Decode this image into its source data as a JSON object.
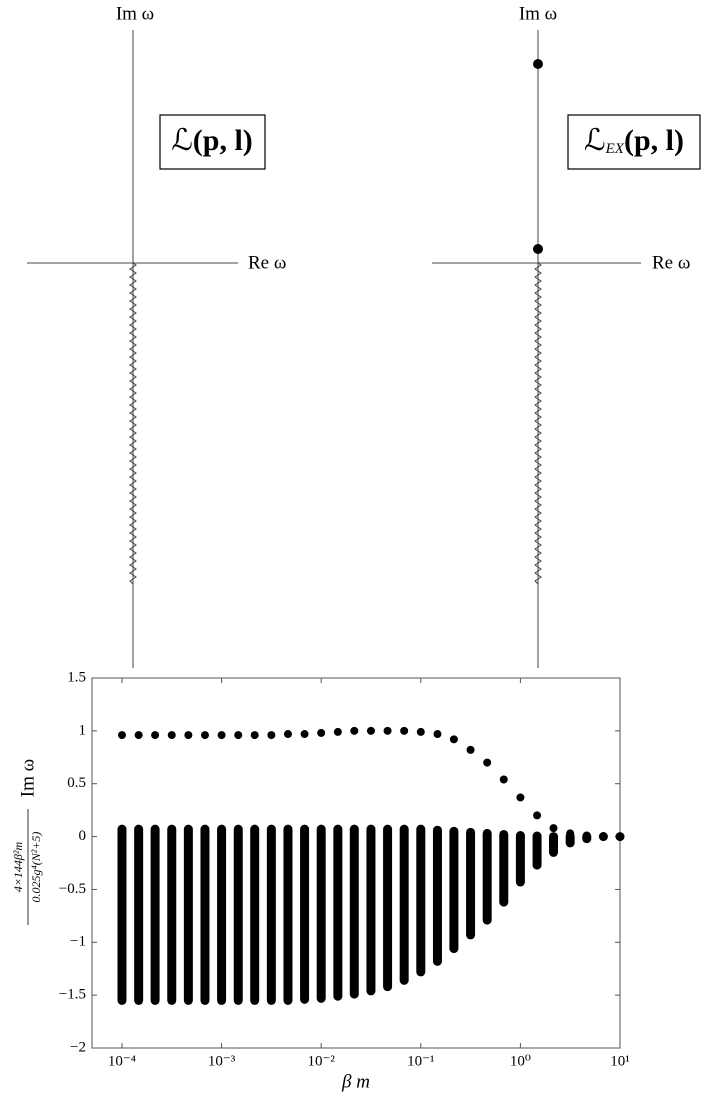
{
  "diagrams": [
    {
      "vertical_label": "Im ω",
      "horizontal_label": "Re ω",
      "box": {
        "symbol": "ℒ",
        "arguments": "(p, l)"
      }
    },
    {
      "vertical_label": "Im ω",
      "horizontal_label": "Re ω",
      "box": {
        "symbol": "ℒ",
        "subscript": "EX",
        "arguments": "(p, l)"
      }
    }
  ],
  "chart_data": {
    "type": "scatter",
    "xlabel": "β m",
    "ylabel": {
      "numerator": "4×144β²m",
      "denominator": "0.025g⁴(N²+5)",
      "text": "Im ω"
    },
    "xscale": "log",
    "xlim": [
      5e-05,
      10
    ],
    "xticks": [
      {
        "value": 0.0001,
        "label": "10⁻⁴"
      },
      {
        "value": 0.001,
        "label": "10⁻³"
      },
      {
        "value": 0.01,
        "label": "10⁻²"
      },
      {
        "value": 0.1,
        "label": "10⁻¹"
      },
      {
        "value": 1,
        "label": "10⁰"
      },
      {
        "value": 10,
        "label": "10¹"
      }
    ],
    "ylim": [
      -2,
      1.5
    ],
    "yticks": [
      {
        "value": -2,
        "label": "−2"
      },
      {
        "value": -1.5,
        "label": "−1.5"
      },
      {
        "value": -1,
        "label": "−1"
      },
      {
        "value": -0.5,
        "label": "−0.5"
      },
      0,
      0.5,
      1,
      1.5
    ],
    "x": [
      0.0001,
      0.000147,
      0.000215,
      0.000316,
      0.000464,
      0.000681,
      0.001,
      0.00147,
      0.00215,
      0.00316,
      0.00464,
      0.00681,
      0.01,
      0.0147,
      0.0215,
      0.0316,
      0.0464,
      0.0681,
      0.1,
      0.147,
      0.215,
      0.316,
      0.464,
      0.681,
      1,
      1.47,
      2.15,
      3.16,
      4.64,
      6.81,
      10
    ],
    "series": [
      {
        "color": "#000000",
        "values": [
          0.96,
          0.96,
          0.96,
          0.96,
          0.96,
          0.96,
          0.96,
          0.96,
          0.96,
          0.96,
          0.97,
          0.97,
          0.98,
          0.99,
          1.0,
          1.0,
          1.0,
          1.0,
          0.99,
          0.97,
          0.92,
          0.82,
          0.7,
          0.54,
          0.37,
          0.2,
          0.08,
          0.03,
          0.01,
          0.005,
          0.002
        ]
      }
    ],
    "band": {
      "color": "#000000",
      "high": [
        0.07,
        0.07,
        0.07,
        0.07,
        0.07,
        0.07,
        0.07,
        0.07,
        0.07,
        0.07,
        0.07,
        0.07,
        0.07,
        0.07,
        0.07,
        0.07,
        0.07,
        0.07,
        0.07,
        0.06,
        0.05,
        0.04,
        0.03,
        0.02,
        0.01,
        0.005,
        0.0,
        0.0,
        0.0,
        0.0,
        0.0
      ],
      "low": [
        -1.55,
        -1.55,
        -1.55,
        -1.55,
        -1.55,
        -1.55,
        -1.55,
        -1.55,
        -1.55,
        -1.55,
        -1.55,
        -1.54,
        -1.53,
        -1.51,
        -1.49,
        -1.46,
        -1.42,
        -1.36,
        -1.28,
        -1.18,
        -1.06,
        -0.93,
        -0.79,
        -0.62,
        -0.43,
        -0.27,
        -0.15,
        -0.06,
        -0.02,
        0.0,
        0.0
      ]
    }
  }
}
